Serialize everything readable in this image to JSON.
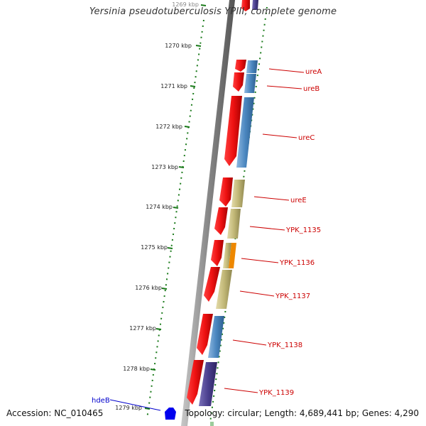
{
  "title": "Yersinia pseudotuberculosis YPIII, complete genome",
  "footer": {
    "accession": "Accession: NC_010465",
    "topology": "Topology: circular; Length: 4,689,441 bp; Genes: 4,290"
  },
  "ticks": [
    "1269 kbp",
    "1270 kbp",
    "1271 kbp",
    "1272 kbp",
    "1273 kbp",
    "1274 kbp",
    "1275 kbp",
    "1276 kbp",
    "1277 kbp",
    "1278 kbp",
    "1279 kbp"
  ],
  "genes_forward": [
    "ureA",
    "ureB",
    "ureC",
    "ureE",
    "YPK_1135",
    "YPK_1136",
    "YPK_1137",
    "YPK_1138",
    "YPK_1139"
  ],
  "gene_reverse": "hdeB",
  "colors": {
    "cds": "#ee1111",
    "blue": "#4a86bf",
    "olive": "#c2b877",
    "orange": "#ee8800",
    "purple": "#4a3f8e",
    "hdeB": "#0000ee",
    "tick": "#1a7a1a",
    "label": "#cc0000"
  }
}
